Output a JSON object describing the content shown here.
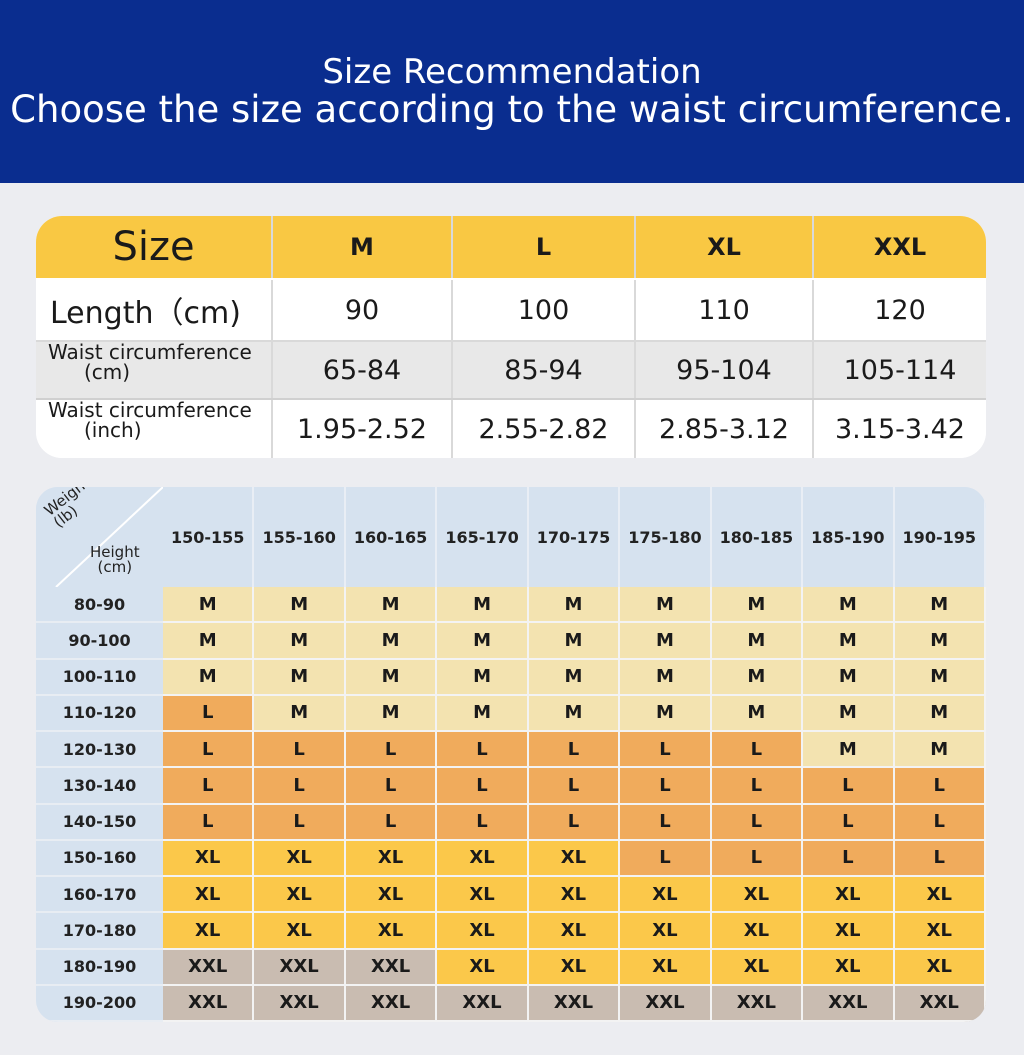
{
  "header": {
    "title": "Size Recommendation",
    "subtitle": "Choose the size according to the waist circumference."
  },
  "spec_table": {
    "size_label": "Size",
    "sizes": [
      "M",
      "L",
      "XL",
      "XXL"
    ],
    "length_label": "Length（cm)",
    "length_values": [
      "90",
      "100",
      "110",
      "120"
    ],
    "waist_cm_label_1": "Waist circumference",
    "waist_cm_label_2": "(cm)",
    "waist_cm_values": [
      "65-84",
      "85-94",
      "95-104",
      "105-114"
    ],
    "waist_inch_label_1": "Waist circumference",
    "waist_inch_label_2": "(inch)",
    "waist_inch_values": [
      "1.95-2.52",
      "2.55-2.82",
      "2.85-3.12",
      "3.15-3.42"
    ]
  },
  "size_grid": {
    "corner_weight_1": "Weight",
    "corner_weight_2": "(lb)",
    "corner_height_1": "Height",
    "corner_height_2": "(cm)",
    "columns": [
      "150-155",
      "155-160",
      "160-165",
      "165-170",
      "170-175",
      "175-180",
      "180-185",
      "185-190",
      "190-195"
    ],
    "rows": [
      {
        "label": "80-90",
        "cells": [
          "M",
          "M",
          "M",
          "M",
          "M",
          "M",
          "M",
          "M",
          "M"
        ]
      },
      {
        "label": "90-100",
        "cells": [
          "M",
          "M",
          "M",
          "M",
          "M",
          "M",
          "M",
          "M",
          "M"
        ]
      },
      {
        "label": "100-110",
        "cells": [
          "M",
          "M",
          "M",
          "M",
          "M",
          "M",
          "M",
          "M",
          "M"
        ]
      },
      {
        "label": "110-120",
        "cells": [
          "L",
          "M",
          "M",
          "M",
          "M",
          "M",
          "M",
          "M",
          "M"
        ]
      },
      {
        "label": "120-130",
        "cells": [
          "L",
          "L",
          "L",
          "L",
          "L",
          "L",
          "L",
          "M",
          "M"
        ]
      },
      {
        "label": "130-140",
        "cells": [
          "L",
          "L",
          "L",
          "L",
          "L",
          "L",
          "L",
          "L",
          "L"
        ]
      },
      {
        "label": "140-150",
        "cells": [
          "L",
          "L",
          "L",
          "L",
          "L",
          "L",
          "L",
          "L",
          "L"
        ]
      },
      {
        "label": "150-160",
        "cells": [
          "XL",
          "XL",
          "XL",
          "XL",
          "XL",
          "L",
          "L",
          "L",
          "L"
        ]
      },
      {
        "label": "160-170",
        "cells": [
          "XL",
          "XL",
          "XL",
          "XL",
          "XL",
          "XL",
          "XL",
          "XL",
          "XL"
        ]
      },
      {
        "label": "170-180",
        "cells": [
          "XL",
          "XL",
          "XL",
          "XL",
          "XL",
          "XL",
          "XL",
          "XL",
          "XL"
        ]
      },
      {
        "label": "180-190",
        "cells": [
          "XXL",
          "XXL",
          "XXL",
          "XL",
          "XL",
          "XL",
          "XL",
          "XL",
          "XL"
        ]
      },
      {
        "label": "190-200",
        "cells": [
          "XXL",
          "XXL",
          "XXL",
          "XXL",
          "XXL",
          "XXL",
          "XXL",
          "XXL",
          "XXL"
        ]
      }
    ]
  },
  "colors": {
    "header_bg": "#0a2d8f",
    "size_row_bg": "#f9c843",
    "M": "#f3e3b0",
    "L": "#f0ab5c",
    "XL": "#fbc84a",
    "XXL": "#c9bcb1",
    "label_bg": "#d6e2ef"
  }
}
